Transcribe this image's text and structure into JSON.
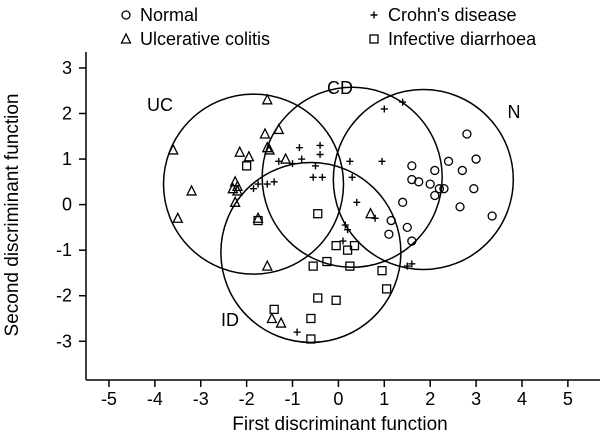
{
  "chart_data": {
    "type": "scatter",
    "xlabel": "First discriminant function",
    "ylabel": "Second discriminant function",
    "xlim": [
      -5.5,
      5.7
    ],
    "ylim": [
      -3.85,
      3.35
    ],
    "x_ticks": [
      -5,
      -4,
      -3,
      -2,
      -1,
      0,
      1,
      2,
      3,
      4,
      5
    ],
    "y_ticks": [
      -3,
      -2,
      -1,
      0,
      1,
      2,
      3
    ],
    "grid": false,
    "legend_position": "top",
    "series": [
      {
        "name": "Normal",
        "marker": "circle",
        "points": [
          [
            2.8,
            1.55
          ],
          [
            2.4,
            0.95
          ],
          [
            3.0,
            1.0
          ],
          [
            2.1,
            0.75
          ],
          [
            2.7,
            0.75
          ],
          [
            1.6,
            0.85
          ],
          [
            1.6,
            0.55
          ],
          [
            1.75,
            0.5
          ],
          [
            2.0,
            0.45
          ],
          [
            2.2,
            0.35
          ],
          [
            2.3,
            0.35
          ],
          [
            2.1,
            0.2
          ],
          [
            2.95,
            0.35
          ],
          [
            2.65,
            -0.05
          ],
          [
            3.35,
            -0.25
          ],
          [
            1.4,
            0.05
          ],
          [
            1.15,
            -0.35
          ],
          [
            1.5,
            -0.5
          ],
          [
            1.1,
            -0.65
          ],
          [
            1.6,
            -0.8
          ]
        ]
      },
      {
        "name": "Crohn's disease",
        "marker": "plus",
        "points": [
          [
            1.0,
            2.1
          ],
          [
            1.4,
            2.25
          ],
          [
            -0.85,
            1.25
          ],
          [
            -0.4,
            1.3
          ],
          [
            -0.4,
            1.1
          ],
          [
            -0.5,
            0.85
          ],
          [
            -0.35,
            0.6
          ],
          [
            -0.55,
            0.6
          ],
          [
            -0.8,
            1.0
          ],
          [
            -1.0,
            0.9
          ],
          [
            -1.3,
            0.95
          ],
          [
            0.25,
            0.95
          ],
          [
            0.95,
            0.95
          ],
          [
            0.3,
            0.6
          ],
          [
            -1.4,
            0.5
          ],
          [
            -1.55,
            0.45
          ],
          [
            -1.75,
            0.45
          ],
          [
            -1.85,
            0.35
          ],
          [
            0.4,
            0.05
          ],
          [
            0.15,
            -0.45
          ],
          [
            0.8,
            -0.3
          ],
          [
            0.1,
            -0.8
          ],
          [
            0.2,
            -0.55
          ],
          [
            1.5,
            -1.35
          ],
          [
            1.6,
            -1.3
          ],
          [
            -0.9,
            -2.8
          ]
        ]
      },
      {
        "name": "Ulcerative colitis",
        "marker": "triangle",
        "points": [
          [
            -1.55,
            2.3
          ],
          [
            -1.6,
            1.55
          ],
          [
            -1.3,
            1.65
          ],
          [
            -3.6,
            1.2
          ],
          [
            -2.15,
            1.15
          ],
          [
            -1.55,
            1.25
          ],
          [
            -1.5,
            1.2
          ],
          [
            -1.15,
            1.0
          ],
          [
            -1.95,
            1.05
          ],
          [
            -2.25,
            0.5
          ],
          [
            -2.2,
            0.4
          ],
          [
            -2.3,
            0.35
          ],
          [
            -2.2,
            0.3
          ],
          [
            -2.25,
            0.05
          ],
          [
            -3.2,
            0.3
          ],
          [
            -3.5,
            -0.3
          ],
          [
            -1.75,
            -0.3
          ],
          [
            -1.55,
            -1.35
          ],
          [
            0.7,
            -0.2
          ],
          [
            -1.45,
            -2.5
          ],
          [
            -1.25,
            -2.6
          ]
        ]
      },
      {
        "name": "Infective diarrhoea",
        "marker": "square",
        "points": [
          [
            -2.0,
            0.85
          ],
          [
            -1.75,
            -0.35
          ],
          [
            -0.45,
            -0.2
          ],
          [
            -0.05,
            -0.9
          ],
          [
            -0.55,
            -1.35
          ],
          [
            -0.25,
            -1.25
          ],
          [
            0.2,
            -1.0
          ],
          [
            0.35,
            -0.9
          ],
          [
            0.25,
            -1.35
          ],
          [
            0.95,
            -1.45
          ],
          [
            1.05,
            -1.85
          ],
          [
            -0.45,
            -2.05
          ],
          [
            -0.05,
            -2.1
          ],
          [
            -1.4,
            -2.3
          ],
          [
            -0.6,
            -2.5
          ],
          [
            -0.6,
            -2.95
          ]
        ]
      }
    ],
    "group_circles": [
      {
        "label": "UC",
        "cx": -1.85,
        "cy": 0.45
      },
      {
        "label": "CD",
        "cx": 0.3,
        "cy": 0.6
      },
      {
        "label": "N",
        "cx": 1.85,
        "cy": 0.55
      },
      {
        "label": "ID",
        "cx": -0.6,
        "cy": -1.05
      }
    ]
  }
}
